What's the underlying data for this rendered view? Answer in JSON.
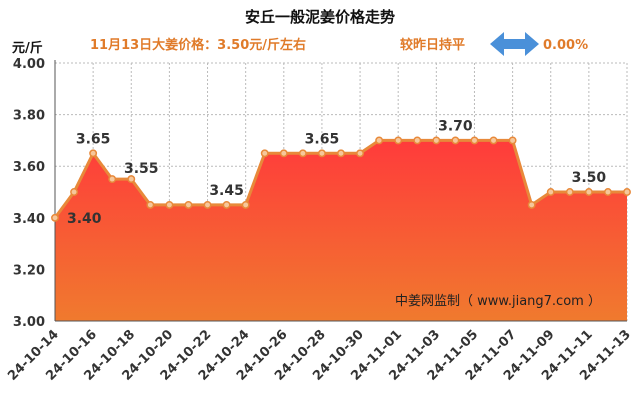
{
  "chart_data": {
    "type": "area",
    "title": "安丘一般泥姜价格走势",
    "ylabel": "元/斤",
    "price_info": "11月13日大姜价格：3.50元/斤左右",
    "compare_label": "较昨日持平",
    "change_value": "0.00%",
    "watermark": "中姜网监制（ www.jiang7.com ）",
    "ylim": [
      3.0,
      4.0
    ],
    "y_ticks": [
      "3.00",
      "3.20",
      "3.40",
      "3.60",
      "3.80",
      "4.00"
    ],
    "x_tick_labels": [
      "24-10-14",
      "24-10-16",
      "24-10-18",
      "24-10-20",
      "24-10-22",
      "24-10-24",
      "24-10-26",
      "24-10-28",
      "24-10-30",
      "24-11-01",
      "24-11-03",
      "24-11-05",
      "24-11-07",
      "24-11-09",
      "24-11-11",
      "24-11-13"
    ],
    "grid": true,
    "series": [
      {
        "x": [
          "24-10-14",
          "24-10-15",
          "24-10-16",
          "24-10-17",
          "24-10-18",
          "24-10-19",
          "24-10-20",
          "24-10-21",
          "24-10-22",
          "24-10-23",
          "24-10-24",
          "24-10-25",
          "24-10-26",
          "24-10-27",
          "24-10-28",
          "24-10-29",
          "24-10-30",
          "24-10-31",
          "24-11-01",
          "24-11-02",
          "24-11-03",
          "24-11-04",
          "24-11-05",
          "24-11-06",
          "24-11-07",
          "24-11-08",
          "24-11-09",
          "24-11-10",
          "24-11-11",
          "24-11-12",
          "24-11-13"
        ],
        "values": [
          3.4,
          3.5,
          3.65,
          3.55,
          3.55,
          3.45,
          3.45,
          3.45,
          3.45,
          3.45,
          3.45,
          3.65,
          3.65,
          3.65,
          3.65,
          3.65,
          3.65,
          3.7,
          3.7,
          3.7,
          3.7,
          3.7,
          3.7,
          3.7,
          3.7,
          3.45,
          3.5,
          3.5,
          3.5,
          3.5,
          3.5
        ]
      }
    ],
    "data_labels": [
      {
        "index": 0,
        "text": "3.40"
      },
      {
        "index": 2,
        "text": "3.65"
      },
      {
        "index": 4,
        "text": "3.55"
      },
      {
        "index": 9,
        "text": "3.45"
      },
      {
        "index": 14,
        "text": "3.65"
      },
      {
        "index": 21,
        "text": "3.70"
      },
      {
        "index": 28,
        "text": "3.50"
      }
    ],
    "colors": {
      "area_top": "#ff3b3b",
      "area_bottom": "#f07a2e",
      "line": "#e8893a",
      "marker_fill": "#f6c79a",
      "info_text": "#e07b2a",
      "arrow": "#4a90d9"
    }
  }
}
